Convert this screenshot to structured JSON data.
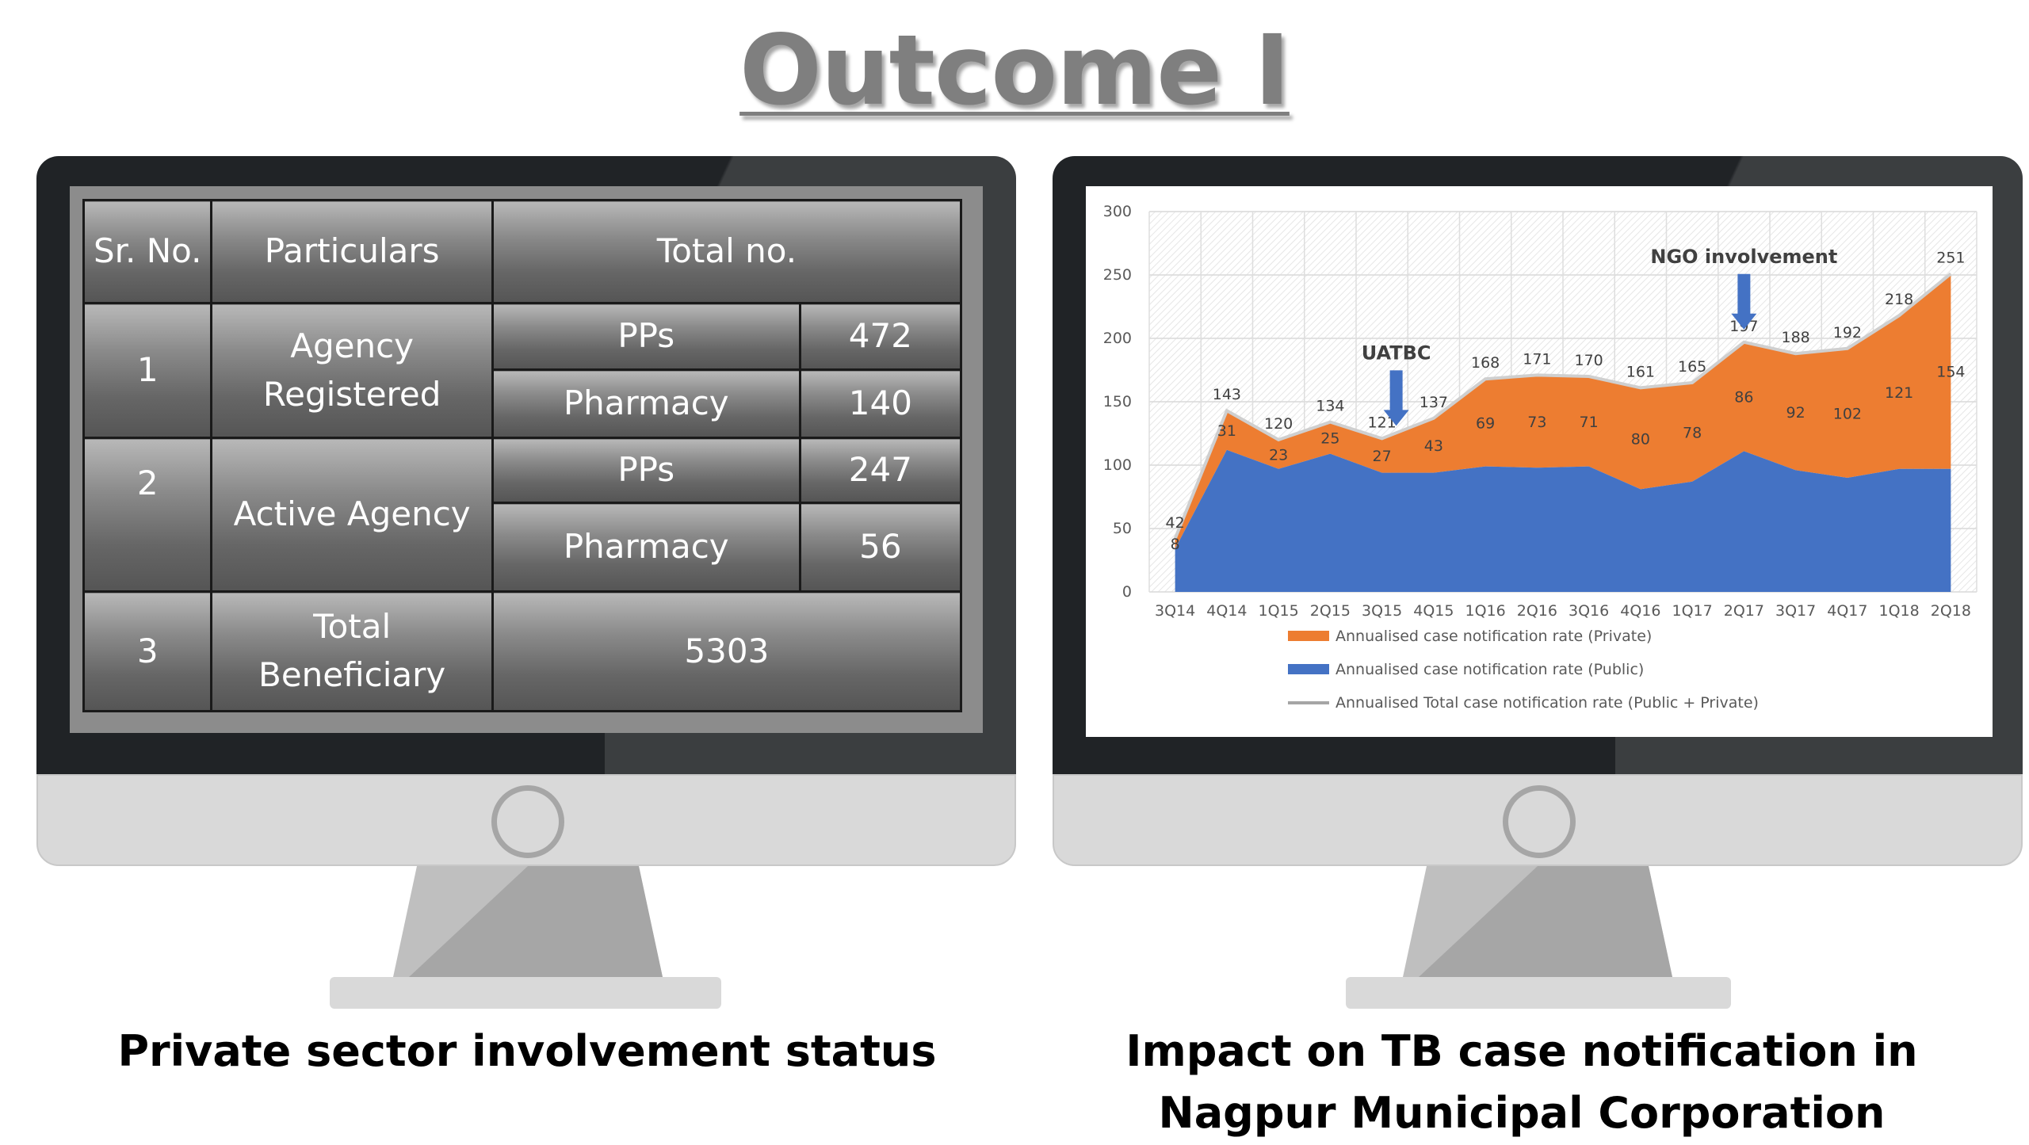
{
  "page_title": "Outcome I",
  "left_panel": {
    "caption": "Private sector involvement status",
    "table": {
      "headers": [
        "Sr. No.",
        "Particulars",
        "Total no."
      ],
      "rows": [
        {
          "sr": "1",
          "particular": "Agency Registered",
          "items": [
            {
              "label": "PPs",
              "value": "472"
            },
            {
              "label": "Pharmacy",
              "value": "140"
            }
          ]
        },
        {
          "sr": "2",
          "particular": "Active Agency",
          "items": [
            {
              "label": "PPs",
              "value": "247"
            },
            {
              "label": "Pharmacy",
              "value": "56"
            }
          ]
        },
        {
          "sr": "3",
          "particular": "Total Beneficiary",
          "total": "5303"
        }
      ]
    }
  },
  "right_panel": {
    "caption": "Impact on TB case notification in Nagpur Municipal Corporation"
  },
  "chart_data": {
    "type": "area",
    "x": [
      "3Q14",
      "4Q14",
      "1Q15",
      "2Q15",
      "3Q15",
      "4Q15",
      "1Q16",
      "2Q16",
      "3Q16",
      "4Q16",
      "1Q17",
      "2Q17",
      "3Q17",
      "4Q17",
      "1Q18",
      "2Q18"
    ],
    "series": [
      {
        "name": "Annualised case notification rate (Private)",
        "color": "#ed7d31",
        "values": [
          8,
          31,
          23,
          25,
          27,
          43,
          69,
          73,
          71,
          80,
          78,
          86,
          92,
          102,
          121,
          154
        ]
      },
      {
        "name": "Annualised case notification rate (Public)",
        "color": "#4472c4",
        "values": [
          34,
          112,
          97,
          109,
          94,
          94,
          99,
          98,
          99,
          81,
          87,
          111,
          96,
          90,
          97,
          97
        ]
      },
      {
        "name": "Annualised Total case notification rate (Public + Private)",
        "color": "#a5a5a5",
        "values": [
          42,
          143,
          120,
          134,
          121,
          137,
          168,
          171,
          170,
          161,
          165,
          197,
          188,
          192,
          218,
          251
        ]
      }
    ],
    "ylim": [
      0,
      300
    ],
    "yticks": [
      0,
      50,
      100,
      150,
      200,
      250,
      300
    ],
    "grid": true,
    "legend": "bottom",
    "annotations": [
      {
        "text": "UATBC",
        "at": "3Q15"
      },
      {
        "text": "NGO involvement",
        "at": "2Q17"
      }
    ],
    "arrow_color": "#4472c4"
  }
}
